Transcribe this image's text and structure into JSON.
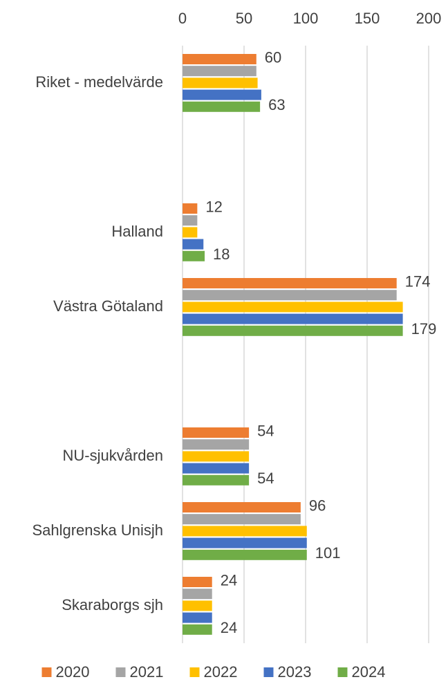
{
  "chart_data": {
    "type": "hbar",
    "categories": [
      "Riket - medelvärde",
      null,
      "Halland",
      "Västra Götaland",
      null,
      "NU-sjukvården",
      "Sahlgrenska Unisjh",
      "Skaraborgs sjh"
    ],
    "series": [
      {
        "name": "2020",
        "color": "#ed7d31",
        "data_labels": true,
        "values": [
          60,
          null,
          12,
          174,
          null,
          54,
          96,
          24
        ]
      },
      {
        "name": "2021",
        "color": "#a5a5a5",
        "data_labels": false,
        "values": [
          60,
          null,
          12,
          174,
          null,
          54,
          96,
          24
        ]
      },
      {
        "name": "2022",
        "color": "#ffc000",
        "data_labels": false,
        "values": [
          61,
          null,
          12,
          179,
          null,
          54,
          101,
          24
        ]
      },
      {
        "name": "2023",
        "color": "#4472c4",
        "data_labels": false,
        "values": [
          64,
          null,
          17,
          179,
          null,
          54,
          101,
          24
        ]
      },
      {
        "name": "2024",
        "color": "#70ad47",
        "data_labels": true,
        "values": [
          63,
          null,
          18,
          179,
          null,
          54,
          101,
          24
        ]
      }
    ],
    "xlim": [
      0,
      200
    ],
    "xticks": [
      0,
      50,
      100,
      150,
      200
    ],
    "grid": true,
    "legend": "bottom"
  }
}
